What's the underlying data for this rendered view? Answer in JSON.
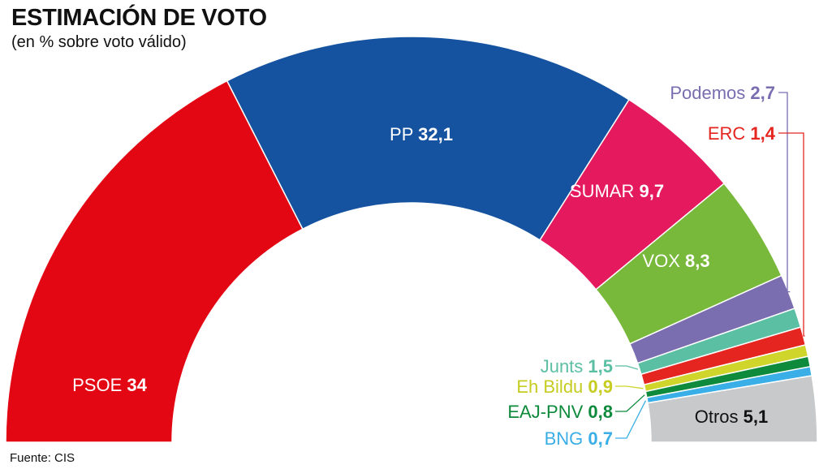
{
  "title": "ESTIMACIÓN DE VOTO",
  "subtitle": "(en % sobre voto válido)",
  "source": "Fuente: CIS",
  "chart_data": {
    "type": "pie",
    "title": "ESTIMACIÓN DE VOTO",
    "subtitle": "(en % sobre voto válido)",
    "categories": [
      "PSOE",
      "PP",
      "SUMAR",
      "VOX",
      "Podemos",
      "Junts",
      "ERC",
      "Eh Bildu",
      "EAJ-PNV",
      "BNG",
      "Otros"
    ],
    "values": [
      34,
      32.1,
      9.7,
      8.3,
      2.7,
      1.5,
      1.4,
      0.9,
      0.8,
      0.7,
      5.1
    ],
    "value_labels": [
      "34",
      "32,1",
      "9,7",
      "8,3",
      "2,7",
      "1,5",
      "1,4",
      "0,9",
      "0,8",
      "0,7",
      "5,1"
    ],
    "colors": [
      "#e30613",
      "#1553a0",
      "#e5195d",
      "#78b83a",
      "#7a6db0",
      "#5bbfa4",
      "#e42520",
      "#cfd52b",
      "#0e8a3c",
      "#3aaee6",
      "#c8c9cb"
    ],
    "label_colors": [
      "#ffffff",
      "#ffffff",
      "#ffffff",
      "#ffffff",
      "#7a6db0",
      "#5bbfa4",
      "#e42520",
      "#c6cc20",
      "#0e8a3c",
      "#3aaee6",
      "#111111"
    ],
    "label_placement": [
      "inside",
      "inside",
      "inside",
      "inside",
      "outside-top",
      "outside-left",
      "outside-top",
      "outside-left",
      "outside-left",
      "outside-left",
      "inside"
    ],
    "shape": "semicircle"
  }
}
